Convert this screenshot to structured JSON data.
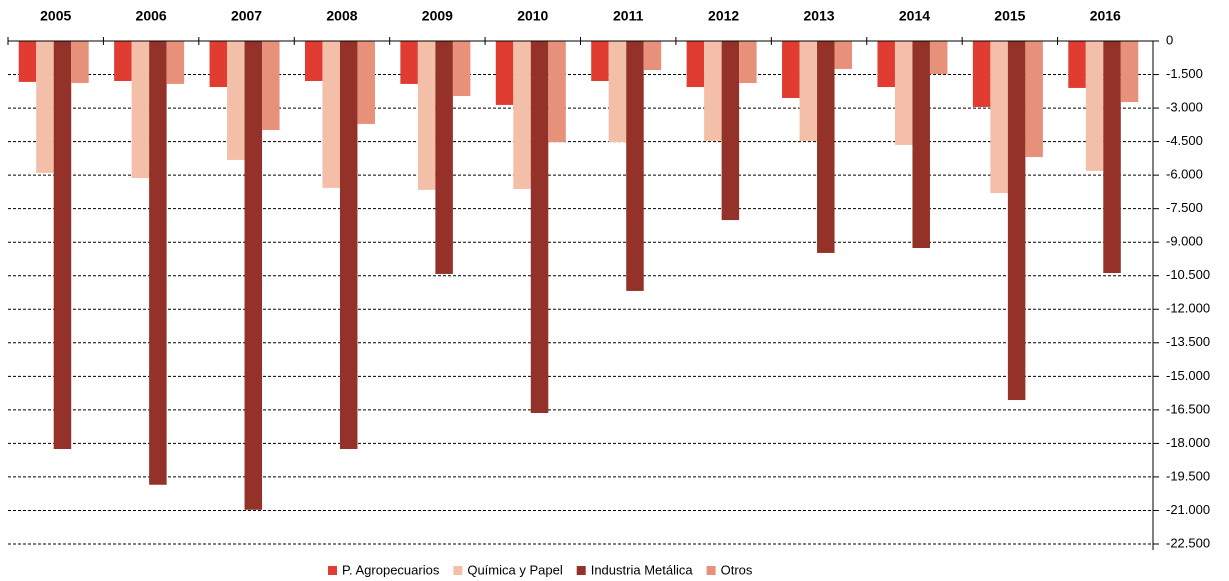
{
  "chart_data": {
    "type": "bar",
    "categories": [
      "2005",
      "2006",
      "2007",
      "2008",
      "2009",
      "2010",
      "2011",
      "2012",
      "2013",
      "2014",
      "2015",
      "2016"
    ],
    "series": [
      {
        "name": "P. Agropecuarios",
        "color": "#e03c31",
        "values": [
          -1830,
          -1790,
          -2060,
          -1790,
          -1920,
          -2860,
          -1790,
          -2060,
          -2550,
          -2060,
          -2950,
          -2100
        ]
      },
      {
        "name": "Química y Papel",
        "color": "#f4bfa8",
        "values": [
          -5900,
          -6130,
          -5320,
          -6570,
          -6660,
          -6620,
          -4520,
          -4470,
          -4470,
          -4650,
          -6800,
          -5810
        ]
      },
      {
        "name": "Industria Metálica",
        "color": "#943128",
        "values": [
          -18250,
          -19850,
          -20970,
          -18250,
          -10420,
          -16640,
          -11180,
          -8010,
          -9480,
          -9260,
          -16060,
          -10380
        ]
      },
      {
        "name": "Otros",
        "color": "#e8917a",
        "values": [
          -1880,
          -1920,
          -3980,
          -3710,
          -2460,
          -4520,
          -1300,
          -1880,
          -1250,
          -1480,
          -5190,
          -2730
        ]
      }
    ],
    "ylim": [
      -22500,
      0
    ],
    "yticks": [
      0,
      {
        "value": -1500,
        "label": "-1.500"
      },
      {
        "value": -3000,
        "label": "-3.000"
      },
      {
        "value": -4500,
        "label": "-4.500"
      },
      {
        "value": -6000,
        "label": "-6.000"
      },
      {
        "value": -7500,
        "label": "-7.500"
      },
      {
        "value": -9000,
        "label": "-9.000"
      },
      {
        "value": -10500,
        "label": "-10.500"
      },
      {
        "value": -12000,
        "label": "-12.000"
      },
      {
        "value": -13500,
        "label": "-13.500"
      },
      {
        "value": -15000,
        "label": "-15.000"
      },
      {
        "value": -16500,
        "label": "-16.500"
      },
      {
        "value": -18000,
        "label": "-18.000"
      },
      {
        "value": -19500,
        "label": "-19.500"
      },
      {
        "value": -21000,
        "label": "-21.000"
      },
      {
        "value": -22500,
        "label": "-22.500"
      }
    ],
    "grid": true,
    "legend": "bottom"
  }
}
